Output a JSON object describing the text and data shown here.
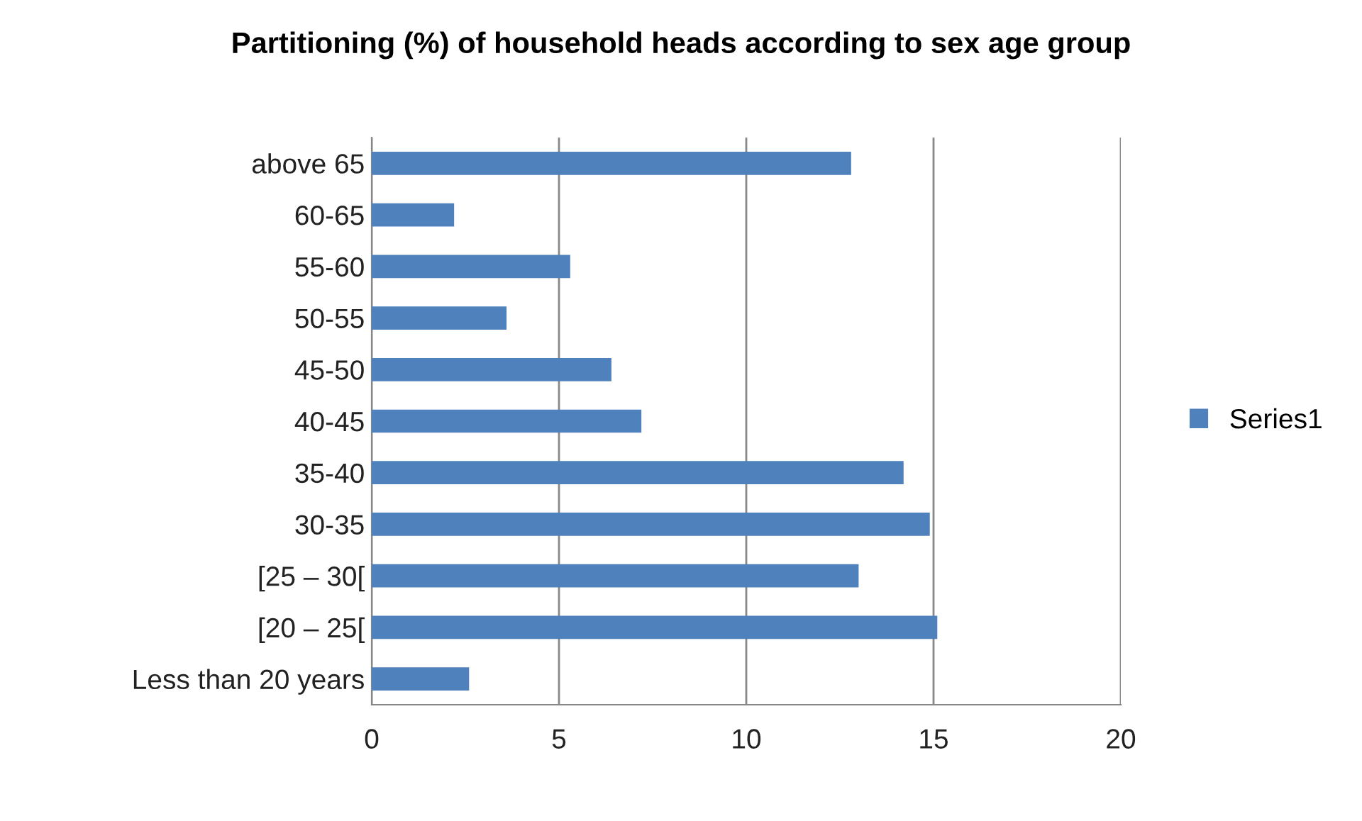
{
  "chart_data": {
    "type": "bar",
    "orientation": "horizontal",
    "title": "Partitioning (%) of household heads according to sex age group",
    "categories": [
      "above 65",
      "60-65",
      "55-60",
      "50-55",
      "45-50",
      "40-45",
      "35-40",
      "30-35",
      "[25 – 30[",
      "[20 – 25[",
      "Less than 20 years"
    ],
    "series": [
      {
        "name": "Series1",
        "color": "#4f81bd",
        "values": [
          12.8,
          2.2,
          5.3,
          3.6,
          6.4,
          7.2,
          14.2,
          14.9,
          13.0,
          15.1,
          2.6
        ]
      }
    ],
    "xlim": [
      0,
      20
    ],
    "xticks": [
      0,
      5,
      10,
      15,
      20
    ],
    "grid": "x",
    "legend": "right"
  }
}
